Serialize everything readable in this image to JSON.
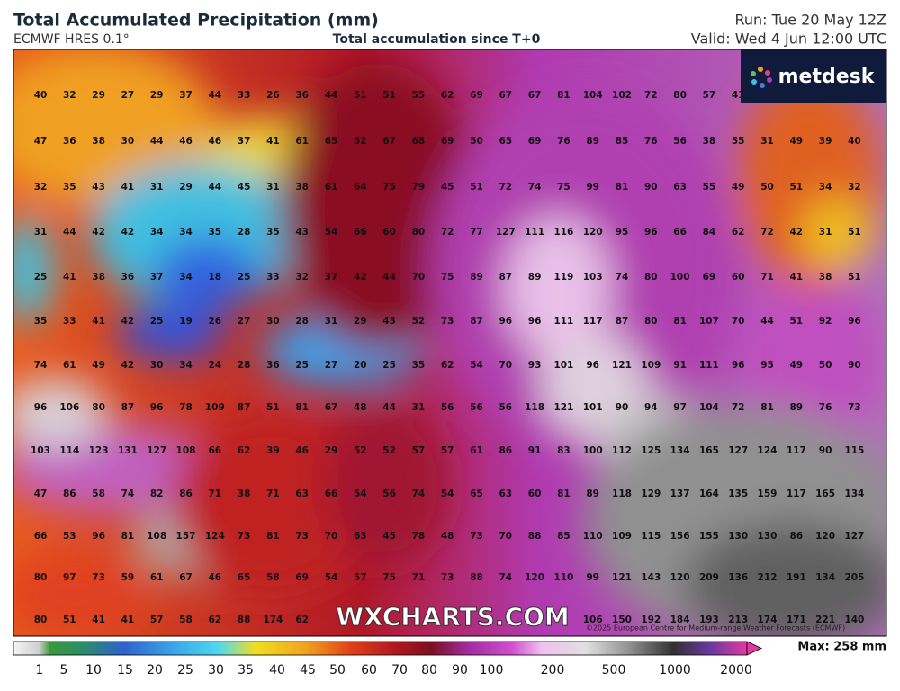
{
  "header": {
    "title": "Total Accumulated Precipitation (mm)",
    "model": "ECMWF HRES 0.1°",
    "subtitle": "Total accumulation since T+0",
    "run": "Run: Tue 20 May 12Z",
    "valid": "Valid: Wed 4 Jun 12:00 UTC"
  },
  "logo": "metdesk",
  "watermark": "WXCHARTS.COM",
  "copyright": "©2025 European Centre for Medium-range Weather Forecasts (ECMWF)",
  "max_label": "Max: 258 mm",
  "colorbar": {
    "ticks": [
      1,
      5,
      10,
      15,
      20,
      25,
      30,
      35,
      40,
      45,
      50,
      60,
      70,
      80,
      90,
      100,
      200,
      500,
      1000,
      2000
    ]
  },
  "grid": {
    "rows": [
      [
        40,
        32,
        29,
        27,
        29,
        37,
        44,
        33,
        26,
        36,
        44,
        51,
        51,
        55,
        62,
        69,
        67,
        67,
        81,
        104,
        102,
        72,
        80,
        57,
        41
      ],
      [
        47,
        36,
        38,
        30,
        44,
        46,
        46,
        37,
        41,
        61,
        65,
        52,
        67,
        68,
        69,
        50,
        65,
        69,
        76,
        89,
        85,
        76,
        56,
        38,
        55,
        31,
        49,
        39,
        40
      ],
      [
        32,
        35,
        43,
        41,
        31,
        29,
        44,
        45,
        31,
        38,
        61,
        64,
        75,
        79,
        45,
        51,
        72,
        74,
        75,
        99,
        81,
        90,
        63,
        55,
        49,
        50,
        51,
        34,
        32
      ],
      [
        31,
        44,
        42,
        42,
        34,
        34,
        35,
        28,
        35,
        43,
        54,
        66,
        60,
        80,
        72,
        77,
        127,
        111,
        116,
        120,
        95,
        96,
        66,
        84,
        62,
        72,
        42,
        31,
        51
      ],
      [
        25,
        41,
        38,
        36,
        37,
        34,
        18,
        25,
        33,
        32,
        37,
        42,
        44,
        70,
        75,
        89,
        87,
        89,
        119,
        103,
        74,
        80,
        100,
        69,
        60,
        71,
        41,
        38,
        51
      ],
      [
        35,
        33,
        41,
        42,
        25,
        19,
        26,
        27,
        30,
        28,
        31,
        29,
        43,
        52,
        73,
        87,
        96,
        96,
        111,
        117,
        87,
        80,
        81,
        107,
        70,
        44,
        51,
        92,
        96
      ],
      [
        74,
        61,
        49,
        42,
        30,
        34,
        24,
        28,
        36,
        25,
        27,
        20,
        25,
        35,
        62,
        54,
        70,
        93,
        101,
        96,
        121,
        109,
        91,
        111,
        96,
        95,
        49,
        50,
        90
      ],
      [
        96,
        106,
        80,
        87,
        96,
        78,
        109,
        87,
        51,
        81,
        67,
        48,
        44,
        31,
        56,
        56,
        56,
        118,
        121,
        101,
        90,
        94,
        97,
        104,
        72,
        81,
        89,
        76,
        73
      ],
      [
        103,
        114,
        123,
        131,
        127,
        108,
        66,
        62,
        39,
        46,
        29,
        52,
        52,
        57,
        57,
        61,
        86,
        91,
        83,
        100,
        112,
        125,
        134,
        165,
        127,
        124,
        117,
        90,
        115
      ],
      [
        47,
        86,
        58,
        74,
        82,
        86,
        71,
        38,
        71,
        63,
        66,
        54,
        56,
        74,
        54,
        65,
        63,
        60,
        81,
        89,
        118,
        129,
        137,
        164,
        135,
        159,
        117,
        165,
        134
      ],
      [
        66,
        53,
        96,
        81,
        108,
        157,
        124,
        73,
        81,
        73,
        70,
        63,
        45,
        78,
        48,
        73,
        70,
        88,
        85,
        110,
        109,
        115,
        156,
        155,
        130,
        130,
        86,
        120,
        127
      ],
      [
        80,
        97,
        73,
        59,
        61,
        67,
        46,
        65,
        58,
        69,
        54,
        57,
        75,
        71,
        73,
        88,
        74,
        120,
        110,
        99,
        121,
        143,
        120,
        209,
        136,
        212,
        191,
        134,
        205
      ],
      [
        80,
        51,
        41,
        41,
        57,
        58,
        62,
        88,
        174,
        62,
        null,
        null,
        null,
        null,
        null,
        null,
        null,
        null,
        null,
        106,
        150,
        192,
        184,
        193,
        213,
        174,
        171,
        221,
        140
      ]
    ]
  }
}
